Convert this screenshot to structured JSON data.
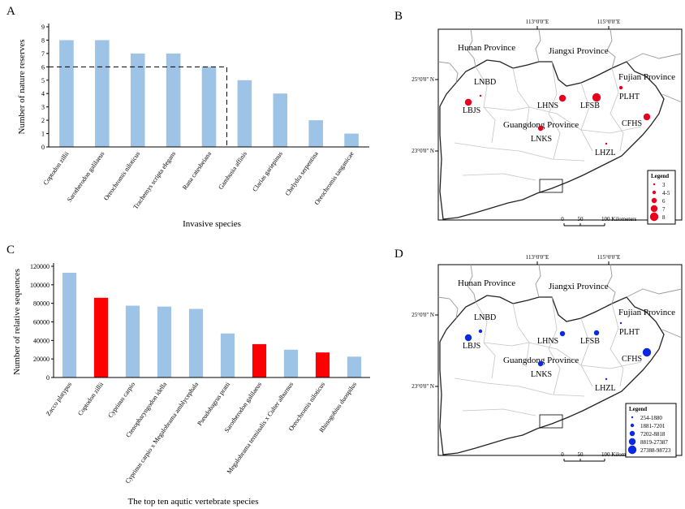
{
  "panels": {
    "a": "A",
    "b": "B",
    "c": "C",
    "d": "D"
  },
  "chart_data": [
    {
      "type": "bar",
      "categories": [
        "Coptodon zillii",
        "Sarotherodon galilaeus",
        "Oreochromis niloticus",
        "Trachemys scripta elegans",
        "Rana catesbeiana",
        "Gambusia affinis",
        "Clarias gariepinus",
        "Chelydra serpentina",
        "Oreochromis tanganicae"
      ],
      "values": [
        8,
        8,
        7,
        7,
        6,
        5,
        4,
        2,
        1
      ],
      "xlabel": "Invasive species",
      "ylabel": "Number of nature reserves",
      "ylim": [
        0,
        9
      ],
      "yticks": [
        "0",
        "1",
        "2",
        "3",
        "4",
        "5",
        "6",
        "7",
        "8",
        "9"
      ],
      "color": "#9dc3e6",
      "threshold_line": 6
    },
    {
      "type": "bar",
      "categories": [
        "Zacco platypus",
        "Coptodon zillii",
        "Cyprinus carpio",
        "Ctenopharyngodon idella",
        "Cyprinus carpio x Megalobrama amblycephala",
        "Pseudobagrus pratti",
        "Sarotherodon galilaeus",
        "Megalobrama terminalis x Culter alburnus",
        "Oreochromis niloticus",
        "Rhinogobius duospilus"
      ],
      "values": [
        113000,
        86000,
        77500,
        76500,
        74000,
        47500,
        36000,
        30000,
        27000,
        22500
      ],
      "highlight": [
        false,
        true,
        false,
        false,
        false,
        false,
        true,
        false,
        true,
        false
      ],
      "xlabel": "The top ten aqutic vertebrate species",
      "ylabel": "Number of relative sequences",
      "ylim": [
        0,
        120000
      ],
      "yticks": [
        "0",
        "20000",
        "40000",
        "60000",
        "80000",
        "100000",
        "120000"
      ],
      "color": "#9dc3e6",
      "highlight_color": "#ff0000"
    }
  ],
  "maps": {
    "lon_labels": [
      "113°0'0\"E",
      "115°0'0\"E"
    ],
    "lat_labels": [
      "25°0'0\" N",
      "23°0'0\" N"
    ],
    "provinces": [
      "Hunan Province",
      "Jiangxi Province",
      "Fujian Province",
      "Guangdong Province"
    ],
    "scale_labels": [
      "0",
      "50",
      "100 Kilometers"
    ],
    "legend_title": "Legend",
    "sites": [
      "LNBD",
      "LBJS",
      "LHNS",
      "LFSB",
      "PLHT",
      "CFHS",
      "LNKS",
      "LHZL"
    ],
    "map_b": {
      "color": "#e8001c",
      "legend": [
        "3",
        "4-5",
        "6",
        "7",
        "8"
      ],
      "values": {
        "LNBD": "3",
        "LBJS": "7",
        "LHNS": "7",
        "LFSB": "8",
        "PLHT": "4-5",
        "CFHS": "7",
        "LNKS": "6",
        "LHZL": "3"
      }
    },
    "map_d": {
      "color": "#0b2ae0",
      "legend": [
        "254-1880",
        "1881-7201",
        "7202-8818",
        "8819-27387",
        "27388-98723"
      ],
      "values": {
        "LNBD": "1881-7201",
        "LBJS": "8819-27387",
        "LHNS": "7202-8818",
        "LFSB": "7202-8818",
        "PLHT": "254-1880",
        "CFHS": "27388-98723",
        "LNKS": "7202-8818",
        "LHZL": "254-1880"
      }
    }
  }
}
